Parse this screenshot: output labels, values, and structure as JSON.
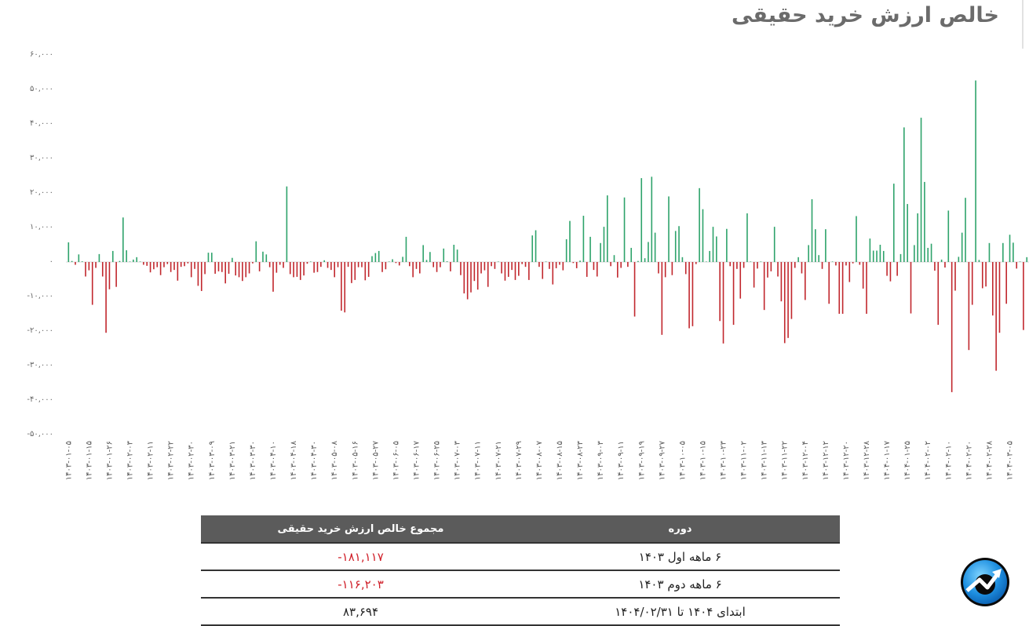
{
  "title": "خالص ارزش خرید حقیقی",
  "colors": {
    "positive": "#2ea36b",
    "negative": "#c1272d",
    "table_header": "#5b5b5b",
    "negative_text": "#d0202a"
  },
  "chart_data": {
    "type": "bar",
    "title": "خالص ارزش خرید حقیقی",
    "xlabel": "",
    "ylabel": "",
    "ylim": [
      -50000,
      60000
    ],
    "grid": false,
    "legend": "none",
    "y_ticks": [
      {
        "value": 60000,
        "label": "۶۰,۰۰۰"
      },
      {
        "value": 50000,
        "label": "۵۰,۰۰۰"
      },
      {
        "value": 40000,
        "label": "۴۰,۰۰۰"
      },
      {
        "value": 30000,
        "label": "۳۰,۰۰۰"
      },
      {
        "value": 20000,
        "label": "۲۰,۰۰۰"
      },
      {
        "value": 10000,
        "label": "۱۰,۰۰۰"
      },
      {
        "value": 0,
        "label": "۰"
      },
      {
        "value": -10000,
        "label": "-۱۰,۰۰۰"
      },
      {
        "value": -20000,
        "label": "-۲۰,۰۰۰"
      },
      {
        "value": -30000,
        "label": "-۳۰,۰۰۰"
      },
      {
        "value": -40000,
        "label": "-۴۰,۰۰۰"
      },
      {
        "value": -50000,
        "label": "-۵۰,۰۰۰"
      }
    ],
    "x_tick_every": 6,
    "x_tick_labels": [
      "۱۴۰۳-۰۱-۰۵",
      "۱۴۰۳-۰۱-۱۵",
      "۱۴۰۳-۰۱-۲۶",
      "۱۴۰۳-۰۲-۰۳",
      "۱۴۰۳-۰۲-۱۱",
      "۱۴۰۳-۰۲-۲۲",
      "۱۴۰۳-۰۲-۳۰",
      "۱۴۰۳-۰۳-۰۹",
      "۱۴۰۳-۰۳-۲۱",
      "۱۴۰۳-۰۳-۳۰",
      "۱۴۰۳-۰۴-۱۰",
      "۱۴۰۳-۰۴-۱۸",
      "۱۴۰۳-۰۴-۳۰",
      "۱۴۰۳-۰۵-۰۸",
      "۱۴۰۳-۰۵-۱۶",
      "۱۴۰۳-۰۵-۲۷",
      "۱۴۰۳-۰۶-۰۵",
      "۱۴۰۳-۰۶-۱۷",
      "۱۴۰۳-۰۶-۲۵",
      "۱۴۰۳-۰۷-۰۳",
      "۱۴۰۳-۰۷-۱۱",
      "۱۴۰۳-۰۷-۲۱",
      "۱۴۰۳-۰۷-۲۹",
      "۱۴۰۳-۰۸-۰۷",
      "۱۴۰۳-۰۸-۱۵",
      "۱۴۰۳-۰۸-۲۳",
      "۱۴۰۳-۰۹-۰۳",
      "۱۴۰۳-۰۹-۱۱",
      "۱۴۰۳-۰۹-۱۹",
      "۱۴۰۳-۰۹-۲۷",
      "۱۴۰۳-۱۰-۰۵",
      "۱۴۰۳-۱۰-۱۵",
      "۱۴۰۳-۱۰-۲۳",
      "۱۴۰۳-۱۱-۰۲",
      "۱۴۰۳-۱۱-۱۳",
      "۱۴۰۳-۱۱-۲۲",
      "۱۴۰۳-۱۲-۰۴",
      "۱۴۰۳-۱۲-۱۲",
      "۱۴۰۳-۱۲-۲۰",
      "۱۴۰۳-۱۲-۲۸",
      "۱۴۰۴-۰۱-۱۷",
      "۱۴۰۴-۰۱-۲۵",
      "۱۴۰۴-۰۲-۰۲",
      "۱۴۰۴-۰۲-۱۰",
      "۱۴۰۴-۰۲-۲۰",
      "۱۴۰۴-۰۲-۲۸",
      "۱۴۰۴-۰۳-۰۵"
    ],
    "values": [
      5700,
      300,
      -800,
      2200,
      200,
      -4200,
      -2400,
      -12400,
      -1700,
      2300,
      -4200,
      -20500,
      -7900,
      3200,
      -7200,
      300,
      12900,
      3400,
      100,
      700,
      1400,
      0,
      -800,
      -1100,
      -3000,
      -2100,
      -1500,
      -3800,
      -1500,
      -600,
      -2900,
      -2300,
      -5400,
      -1400,
      -1200,
      -400,
      -4400,
      -2000,
      -6900,
      -8400,
      -3500,
      2700,
      2700,
      -3400,
      -2700,
      -2900,
      -6200,
      -3400,
      1200,
      -3900,
      -4400,
      -5500,
      -4400,
      -3300,
      -400,
      6000,
      -2700,
      3000,
      2200,
      -1500,
      -8600,
      -3100,
      -800,
      -1700,
      21900,
      -3500,
      -4400,
      -4300,
      -5200,
      -3900,
      -500,
      0,
      -3100,
      -2900,
      -1400,
      500,
      -1700,
      -2300,
      -4400,
      -1500,
      -14100,
      -14600,
      -1400,
      -6100,
      -5200,
      -1500,
      -1500,
      -5300,
      -4300,
      1700,
      2600,
      3200,
      -2900,
      -2100,
      0,
      800,
      -300,
      -1000,
      1500,
      7300,
      -1200,
      -4400,
      -2000,
      -3300,
      4900,
      600,
      2900,
      -1500,
      -2900,
      -1500,
      3900,
      200,
      -2700,
      5000,
      3600,
      -3800,
      -9100,
      -10800,
      -8800,
      -5500,
      -8000,
      -3300,
      -2400,
      -7200,
      -1200,
      -2000,
      0,
      -3300,
      -5400,
      -4300,
      -2300,
      -5200,
      -4000,
      -600,
      -1400,
      -5200,
      7700,
      9200,
      -1400,
      -4900,
      0,
      -2000,
      -6500,
      -1800,
      -800,
      -2400,
      6600,
      11900,
      -300,
      -1800,
      400,
      13400,
      -4300,
      7300,
      -2300,
      -4200,
      5500,
      10200,
      19300,
      -1200,
      2000,
      -4500,
      -1700,
      18700,
      -1400,
      4100,
      -15800,
      300,
      24300,
      1100,
      5800,
      24700,
      8500,
      -3300,
      -21100,
      -4400,
      19000,
      -3800,
      9000,
      10400,
      1400,
      -3500,
      -19200,
      -18600,
      -600,
      21400,
      15300,
      0,
      3200,
      10200,
      7400,
      -17100,
      -23600,
      9600,
      -1200,
      -18200,
      -2000,
      -10600,
      -1700,
      14100,
      0,
      -7400,
      -1900,
      0,
      -13900,
      -4500,
      -2700,
      10200,
      -4200,
      -11400,
      -23500,
      -22000,
      -16500,
      -1700,
      1400,
      -3300,
      -11000,
      4900,
      18200,
      9500,
      2000,
      -2000,
      9500,
      -12100,
      0,
      -1000,
      -15000,
      -15000,
      -1000,
      -5800,
      -400,
      13300,
      -800,
      -7700,
      -15000,
      6800,
      3300,
      3300,
      5000,
      3200,
      -4000,
      -5600,
      22700,
      -4000,
      2300,
      39000,
      16800,
      -14900,
      4900,
      14100,
      41800,
      23200,
      4100,
      5300,
      -2500,
      -18200,
      700,
      -1600,
      14900,
      -37700,
      -8300,
      1500,
      8500,
      18600,
      -25500,
      -12400,
      52600,
      600,
      -7600,
      -7100,
      5500,
      -15500,
      -31500,
      -20500,
      5500,
      -12100,
      7900,
      5600,
      -1900,
      0,
      -19700,
      1400
    ]
  },
  "table": {
    "headers": {
      "period": "دوره",
      "sum": "مجموع خالص ارزش خرید حقیقی"
    },
    "rows": [
      {
        "period": "۶ ماهه اول ۱۴۰۳",
        "sum": "-۱۸۱,۱۱۷",
        "negative": true
      },
      {
        "period": "۶ ماهه دوم ۱۴۰۳",
        "sum": "-۱۱۶,۲۰۳",
        "negative": true
      },
      {
        "period": "ابتدای ۱۴۰۴ تا ۱۴۰۴/۰۲/۳۱",
        "sum": "۸۳,۶۹۴",
        "negative": false
      }
    ]
  },
  "logo": {
    "icon": "rising-chart-arrow-logo"
  }
}
